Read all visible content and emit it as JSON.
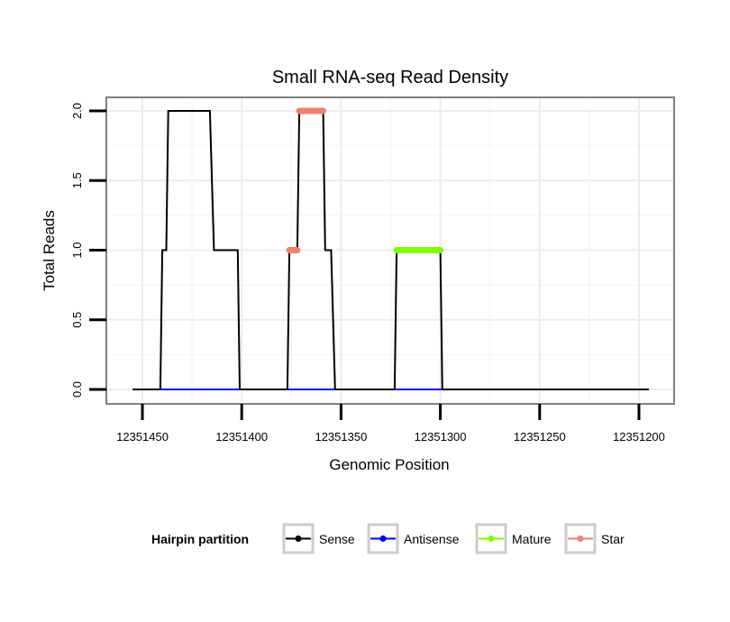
{
  "chart_data": {
    "type": "line",
    "title": "Small RNA-seq Read Density",
    "xlabel": "Genomic Position",
    "ylabel": "Total Reads",
    "x_reversed": true,
    "xlim": [
      12351460,
      12351190
    ],
    "ylim": [
      -0.1,
      2.1
    ],
    "x_ticks": [
      12351450,
      12351400,
      12351350,
      12351300,
      12351250,
      12351200
    ],
    "x_tick_labels": [
      "12351450",
      "12351400",
      "12351350",
      "12351300",
      "12351250",
      "12351200"
    ],
    "y_ticks": [
      0.0,
      0.5,
      1.0,
      1.5,
      2.0
    ],
    "y_tick_labels": [
      "0.0",
      "0.5",
      "1.0",
      "1.5",
      "2.0"
    ],
    "grid": true,
    "legend": {
      "title": "Hairpin partition",
      "position": "bottom",
      "entries": [
        "Sense",
        "Antisense",
        "Mature",
        "Star"
      ]
    },
    "series": [
      {
        "name": "Sense",
        "color": "#000000",
        "style": "line",
        "points": [
          [
            12351455,
            0
          ],
          [
            12351441,
            0
          ],
          [
            12351440,
            1
          ],
          [
            12351438,
            1
          ],
          [
            12351437,
            2
          ],
          [
            12351416,
            2
          ],
          [
            12351414,
            1
          ],
          [
            12351402,
            1
          ],
          [
            12351401,
            0
          ],
          [
            12351377,
            0
          ],
          [
            12351376,
            1
          ],
          [
            12351372,
            1
          ],
          [
            12351371,
            2
          ],
          [
            12351359,
            2
          ],
          [
            12351358,
            1
          ],
          [
            12351355,
            1
          ],
          [
            12351353,
            0
          ],
          [
            12351323,
            0
          ],
          [
            12351322,
            1
          ],
          [
            12351300,
            1
          ],
          [
            12351299,
            0
          ],
          [
            12351195,
            0
          ]
        ]
      },
      {
        "name": "Antisense",
        "color": "#0000ff",
        "style": "line",
        "points": [
          [
            12351455,
            0
          ],
          [
            12351195,
            0
          ]
        ]
      },
      {
        "name": "Mature",
        "color": "#7fff00",
        "style": "thick",
        "segments": [
          [
            [
              12351322,
              1
            ],
            [
              12351300,
              1
            ]
          ]
        ]
      },
      {
        "name": "Star",
        "color": "#f08070",
        "style": "thick",
        "segments": [
          [
            [
              12351376,
              1
            ],
            [
              12351372,
              1
            ]
          ],
          [
            [
              12351371,
              2
            ],
            [
              12351359,
              2
            ]
          ]
        ]
      }
    ]
  }
}
